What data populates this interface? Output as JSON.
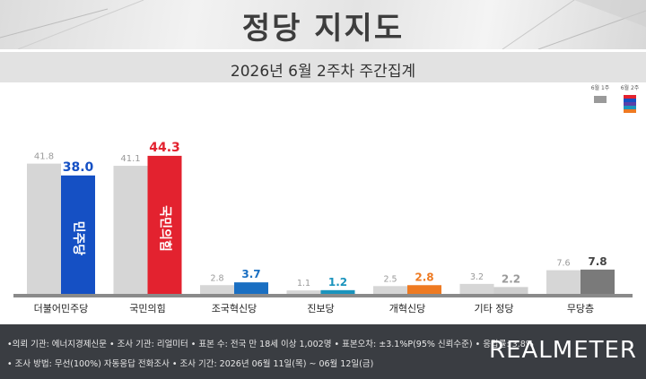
{
  "header": {
    "title": "정당 지지도",
    "subtitle": "2026년 6월 2주차 주간집계"
  },
  "legend": {
    "prev": "6월 1주",
    "curr": "6월 2주"
  },
  "colors": {
    "prev": "#d6d6d6",
    "minjoo": "#1550c4",
    "ppp": "#e3222f",
    "rebuild": "#1a6fc2",
    "progressive": "#1b94bd",
    "reform": "#ee7a22",
    "other": "#cfcfcf",
    "none": "#7a7a7a"
  },
  "chart_data": {
    "type": "bar",
    "categories": [
      "더불어민주당",
      "국민의힘",
      "조국혁신당",
      "진보당",
      "개혁신당",
      "기타 정당",
      "무당층"
    ],
    "series": [
      {
        "name": "6월 1주",
        "values": [
          41.8,
          41.1,
          2.8,
          1.1,
          2.5,
          3.2,
          7.6
        ]
      },
      {
        "name": "6월 2주",
        "values": [
          38.0,
          44.3,
          3.7,
          1.2,
          2.8,
          2.2,
          7.8
        ]
      }
    ],
    "ylim": [
      0,
      46
    ],
    "bar_logos": [
      "민주당",
      "국민의힘"
    ]
  },
  "footer": {
    "line1": "•의뢰 기관: 에너지경제신문  • 조사 기관: 리얼미터  • 표본 수: 전국 만 18세 이상 1,002명  • 표본오차: ±3.1%P(95% 신뢰수준)  • 응답률: 3.8%",
    "line2": "• 조사 방법: 무선(100%) 자동응답 전화조사  • 조사 기간: 2026년 06월 11일(목) ~ 06월 12일(금)",
    "brand": "REALMETER"
  }
}
